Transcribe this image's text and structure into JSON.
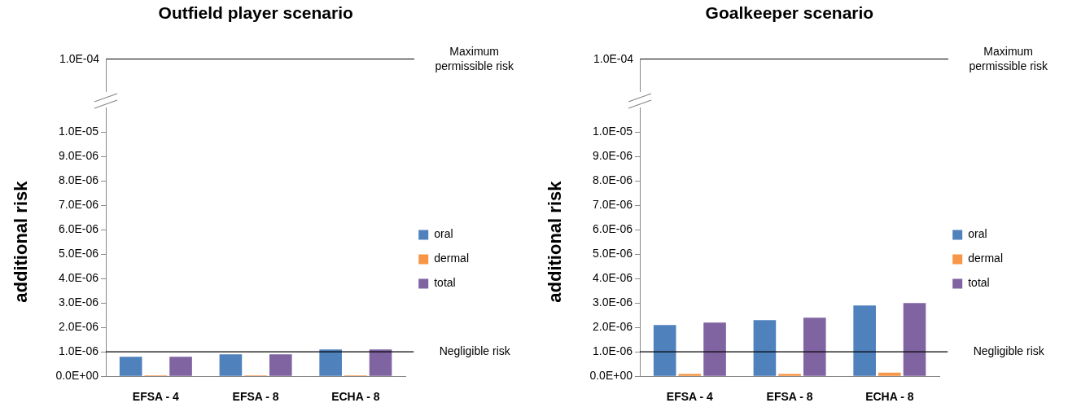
{
  "chart_data": [
    {
      "type": "other",
      "title": "Outfield player scenario",
      "annotations": [
        "1.0E-04",
        "Maximum permissible risk"
      ]
    },
    {
      "type": "bar",
      "ylabel": "additional risk",
      "categories": [
        "EFSA - 4",
        "EFSA - 8",
        "ECHA - 8"
      ],
      "series": [
        {
          "name": "oral",
          "color": "#4f81bd",
          "values": [
            8e-07,
            9e-07,
            1.1e-06
          ]
        },
        {
          "name": "dermal",
          "color": "#f79646",
          "values": [
            4e-08,
            4e-08,
            4e-08
          ]
        },
        {
          "name": "total",
          "color": "#8064a2",
          "values": [
            8e-07,
            9e-07,
            1.1e-06
          ]
        }
      ],
      "ylim": [
        0,
        1.1e-05
      ],
      "yticks": [
        {
          "value": 0,
          "label": "0.0E+00"
        },
        {
          "value": 1e-06,
          "label": "1.0E-06"
        },
        {
          "value": 2e-06,
          "label": "2.0E-06"
        },
        {
          "value": 3e-06,
          "label": "3.0E-06"
        },
        {
          "value": 4e-06,
          "label": "4.0E-06"
        },
        {
          "value": 5e-06,
          "label": "5.0E-06"
        },
        {
          "value": 6e-06,
          "label": "6.0E-06"
        },
        {
          "value": 7e-06,
          "label": "7.0E-06"
        },
        {
          "value": 8e-06,
          "label": "8.0E-06"
        },
        {
          "value": 9e-06,
          "label": "9.0E-06"
        },
        {
          "value": 1e-05,
          "label": "1.0E-05"
        }
      ],
      "ref_lines": [
        {
          "axis": "y",
          "value": 1e-06,
          "label": "Negligible risk",
          "color": "#000000"
        }
      ],
      "grid": false,
      "legend": "right"
    },
    {
      "type": "other",
      "title": "Goalkeeper scenario",
      "annotations": [
        "1.0E-04",
        "Maximum permissible risk"
      ]
    },
    {
      "type": "bar",
      "ylabel": "additional risk",
      "categories": [
        "EFSA - 4",
        "EFSA - 8",
        "ECHA - 8"
      ],
      "series": [
        {
          "name": "oral",
          "color": "#4f81bd",
          "values": [
            2.1e-06,
            2.3e-06,
            2.9e-06
          ]
        },
        {
          "name": "dermal",
          "color": "#f79646",
          "values": [
            1e-07,
            1e-07,
            1.5e-07
          ]
        },
        {
          "name": "total",
          "color": "#8064a2",
          "values": [
            2.2e-06,
            2.4e-06,
            3e-06
          ]
        }
      ],
      "ylim": [
        0,
        1.1e-05
      ],
      "yticks": [
        {
          "value": 0,
          "label": "0.0E+00"
        },
        {
          "value": 1e-06,
          "label": "1.0E-06"
        },
        {
          "value": 2e-06,
          "label": "2.0E-06"
        },
        {
          "value": 3e-06,
          "label": "3.0E-06"
        },
        {
          "value": 4e-06,
          "label": "4.0E-06"
        },
        {
          "value": 5e-06,
          "label": "5.0E-06"
        },
        {
          "value": 6e-06,
          "label": "6.0E-06"
        },
        {
          "value": 7e-06,
          "label": "7.0E-06"
        },
        {
          "value": 8e-06,
          "label": "8.0E-06"
        },
        {
          "value": 9e-06,
          "label": "9.0E-06"
        },
        {
          "value": 1e-05,
          "label": "1.0E-05"
        }
      ],
      "ref_lines": [
        {
          "axis": "y",
          "value": 1e-06,
          "label": "Negligible risk",
          "color": "#000000"
        }
      ],
      "grid": false,
      "legend": "right"
    }
  ]
}
